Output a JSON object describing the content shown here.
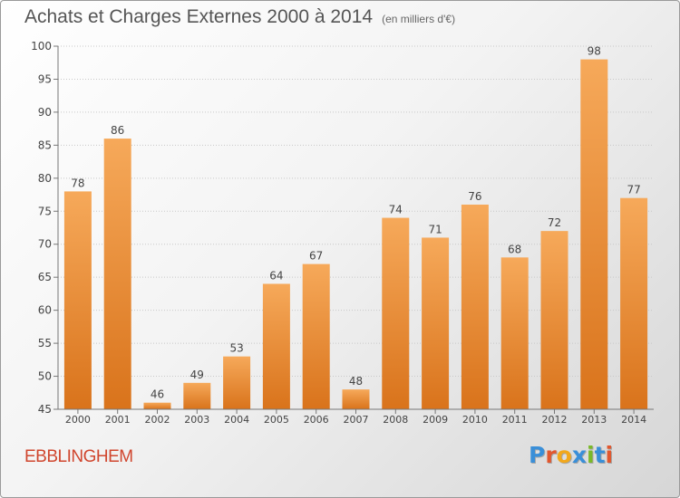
{
  "title": "Achats et Charges Externes 2000 à 2014",
  "subtitle": "(en milliers d'€)",
  "commune": "EBBLINGHEM",
  "logo": {
    "text": "Proxiti",
    "colors": [
      "#3a8fd8",
      "#e2572e",
      "#f2a81c",
      "#3a8fd8",
      "#7ab929",
      "#3a8fd8",
      "#e2572e"
    ]
  },
  "colors": {
    "bar_light": "#f6a95a",
    "bar_dark": "#d9731b",
    "title": "#555555",
    "commune": "#d0462e"
  },
  "chart_data": {
    "type": "bar",
    "categories": [
      "2000",
      "2001",
      "2002",
      "2003",
      "2004",
      "2005",
      "2006",
      "2007",
      "2008",
      "2009",
      "2010",
      "2011",
      "2012",
      "2013",
      "2014"
    ],
    "values": [
      78,
      86,
      46,
      49,
      53,
      64,
      67,
      48,
      74,
      71,
      76,
      68,
      72,
      98,
      77
    ],
    "ylim": [
      45,
      100
    ],
    "yticks": [
      45,
      50,
      55,
      60,
      65,
      70,
      75,
      80,
      85,
      90,
      95,
      100
    ],
    "grid": true,
    "xlabel": "",
    "ylabel": ""
  }
}
